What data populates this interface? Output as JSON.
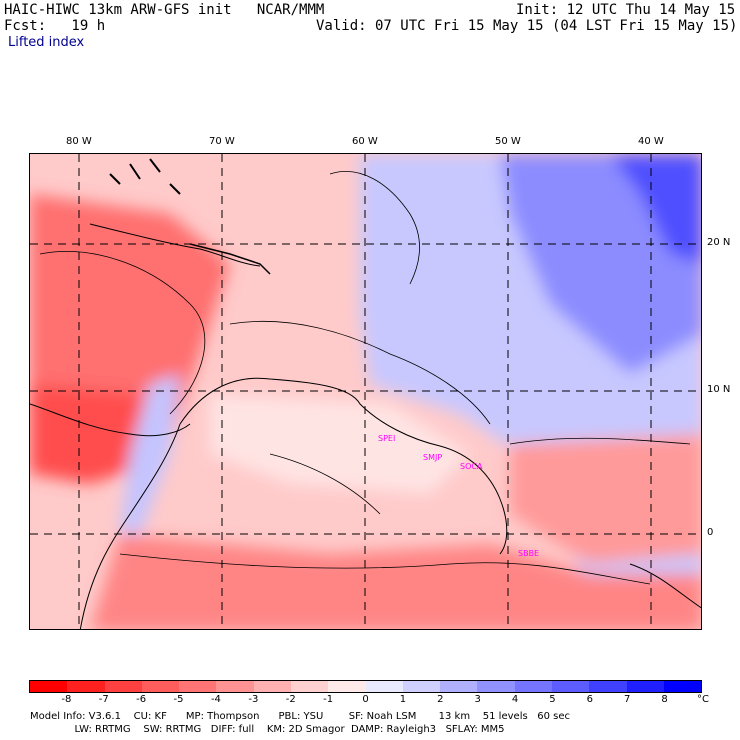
{
  "header": {
    "title_left": "HAIC-HIWC 13km ARW-GFS init",
    "title_center": "NCAR/MMM",
    "init": "Init: 12 UTC Thu 14 May 15",
    "fcst": "Fcst:   19 h",
    "valid": "Valid: 07 UTC Fri 15 May 15 (04 LST Fri 15 May 15)",
    "field": "Lifted index"
  },
  "axes": {
    "lon_labels": [
      "80 W",
      "70 W",
      "60 W",
      "50 W",
      "40 W"
    ],
    "lat_labels": [
      "20 N",
      "10 N",
      "0"
    ]
  },
  "stations": [
    "SPEI",
    "SMJP",
    "SOCA",
    "SBBE"
  ],
  "legend": {
    "ticks": [
      "-8",
      "-7",
      "-6",
      "-5",
      "-4",
      "-3",
      "-2",
      "-1",
      "0",
      "1",
      "2",
      "3",
      "4",
      "5",
      "6",
      "7",
      "8"
    ],
    "unit": "°C",
    "colors": [
      "#ff0000",
      "#ff2020",
      "#ff4040",
      "#ff5c5c",
      "#ff7575",
      "#ff9292",
      "#ffb0b0",
      "#ffd0d0",
      "#ffeaea",
      "#eaeaff",
      "#d0d0ff",
      "#b0b0ff",
      "#9292ff",
      "#7575ff",
      "#5c5cff",
      "#4040ff",
      "#2020ff",
      "#0000ff"
    ]
  },
  "footer": {
    "line1": "Model Info: V3.6.1    CU: KF      MP: Thompson      PBL: YSU        SF: Noah LSM       13 km    51 levels   60 sec",
    "line2": "              LW: RRTMG    SW: RRTMG   DIFF: full    KM: 2D Smagor  DAMP: Rayleigh3   SFLAY: MM5"
  }
}
